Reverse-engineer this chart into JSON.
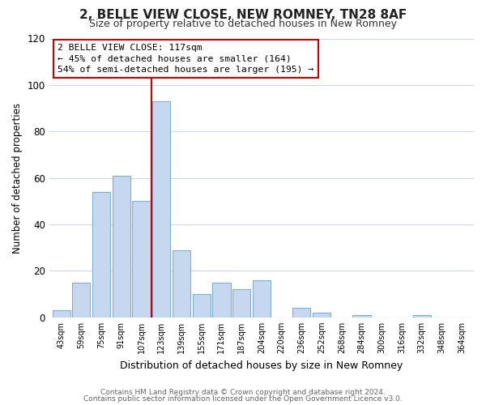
{
  "title": "2, BELLE VIEW CLOSE, NEW ROMNEY, TN28 8AF",
  "subtitle": "Size of property relative to detached houses in New Romney",
  "xlabel": "Distribution of detached houses by size in New Romney",
  "ylabel": "Number of detached properties",
  "bin_labels": [
    "43sqm",
    "59sqm",
    "75sqm",
    "91sqm",
    "107sqm",
    "123sqm",
    "139sqm",
    "155sqm",
    "171sqm",
    "187sqm",
    "204sqm",
    "220sqm",
    "236sqm",
    "252sqm",
    "268sqm",
    "284sqm",
    "300sqm",
    "316sqm",
    "332sqm",
    "348sqm",
    "364sqm"
  ],
  "bar_heights": [
    3,
    15,
    54,
    61,
    50,
    93,
    29,
    10,
    15,
    12,
    16,
    0,
    4,
    2,
    0,
    1,
    0,
    0,
    1,
    0,
    0
  ],
  "bar_color": "#c5d8f0",
  "bar_edge_color": "#7fafd4",
  "ylim": [
    0,
    120
  ],
  "yticks": [
    0,
    20,
    40,
    60,
    80,
    100,
    120
  ],
  "vline_index": 5,
  "vline_color": "#cc0000",
  "annotation_title": "2 BELLE VIEW CLOSE: 117sqm",
  "annotation_line1": "← 45% of detached houses are smaller (164)",
  "annotation_line2": "54% of semi-detached houses are larger (195) →",
  "footer1": "Contains HM Land Registry data © Crown copyright and database right 2024.",
  "footer2": "Contains public sector information licensed under the Open Government Licence v3.0.",
  "background_color": "#ffffff",
  "grid_color": "#d0d8e8"
}
